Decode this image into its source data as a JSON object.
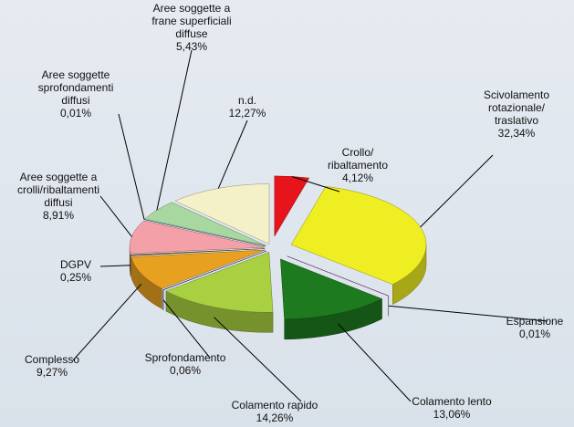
{
  "chart_data": {
    "type": "pie",
    "categories": [
      "Crollo/\nribaltamento",
      "Scivolamento\nrotazionale/\ntraslativo",
      "Espansione",
      "Colamento lento",
      "Colamento rapido",
      "Sprofondamento",
      "Complesso",
      "DGPV",
      "Aree soggette a\ncrolli/ribaltamenti\ndiffusi",
      "Aree soggette\nsprofondamenti\ndiffusi",
      "Aree soggette a\nfrane superficiali\ndiffuse",
      "n.d."
    ],
    "values": [
      4.12,
      32.34,
      0.01,
      13.06,
      14.26,
      0.06,
      9.27,
      0.25,
      8.91,
      0.01,
      5.43,
      12.27
    ],
    "value_labels": [
      "4,12%",
      "32,34%",
      "0,01%",
      "13,06%",
      "14,26%",
      "0,06%",
      "9,27%",
      "0,25%",
      "8,91%",
      "0,01%",
      "5,43%",
      "12,27%"
    ],
    "colors": [
      "#e8141c",
      "#eeee22",
      "#7a2a8c",
      "#1e7a1e",
      "#a8d040",
      "#1e3c8c",
      "#e8a020",
      "#8a5a20",
      "#f4a0a8",
      "#6080a0",
      "#a8d8a0",
      "#f4f0c8"
    ]
  }
}
